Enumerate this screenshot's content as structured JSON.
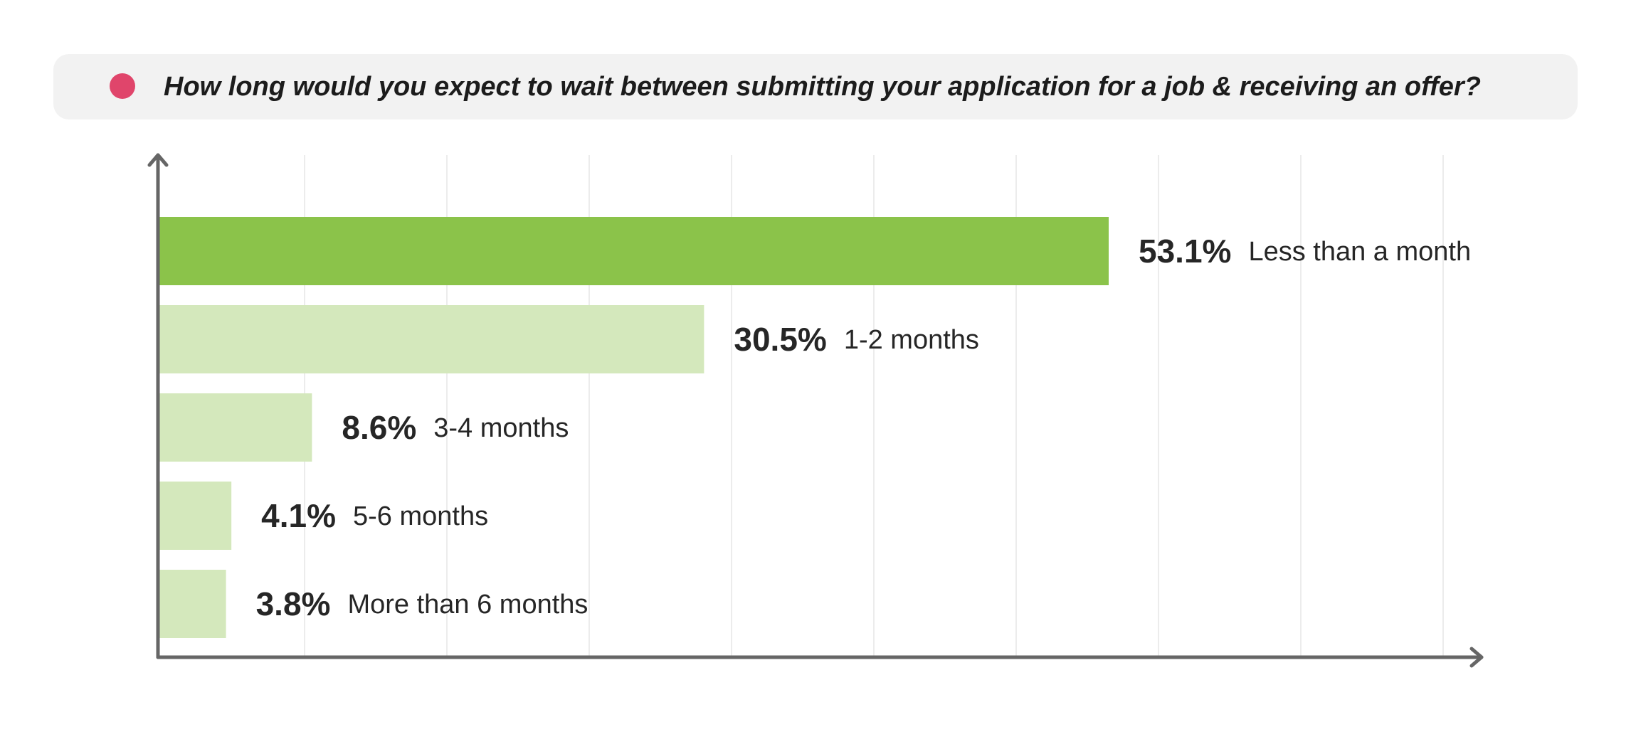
{
  "header": {
    "question": "How long would you expect to wait between submitting your application for a job & receiving an offer?"
  },
  "colors": {
    "title_dot": "#e0456b",
    "bar_highlight": "#8bc34a",
    "bar_default": "#d4e8bc",
    "axis": "#666666",
    "grid": "#ececec"
  },
  "chart_data": {
    "type": "bar",
    "orientation": "horizontal",
    "title": "How long would you expect to wait between submitting your application for a job & receiving an offer?",
    "categories": [
      "Less than a month",
      "1-2 months",
      "3-4 months",
      "5-6 months",
      "More than 6 months"
    ],
    "values": [
      53.1,
      30.5,
      8.6,
      4.1,
      3.8
    ],
    "value_labels": [
      "53.1%",
      "30.5%",
      "8.6%",
      "4.1%",
      "3.8%"
    ],
    "highlight_index": 0,
    "unit": "%",
    "xlabel": "",
    "ylabel": "",
    "xlim": [
      0,
      73
    ],
    "grid": true,
    "legend": "none"
  }
}
